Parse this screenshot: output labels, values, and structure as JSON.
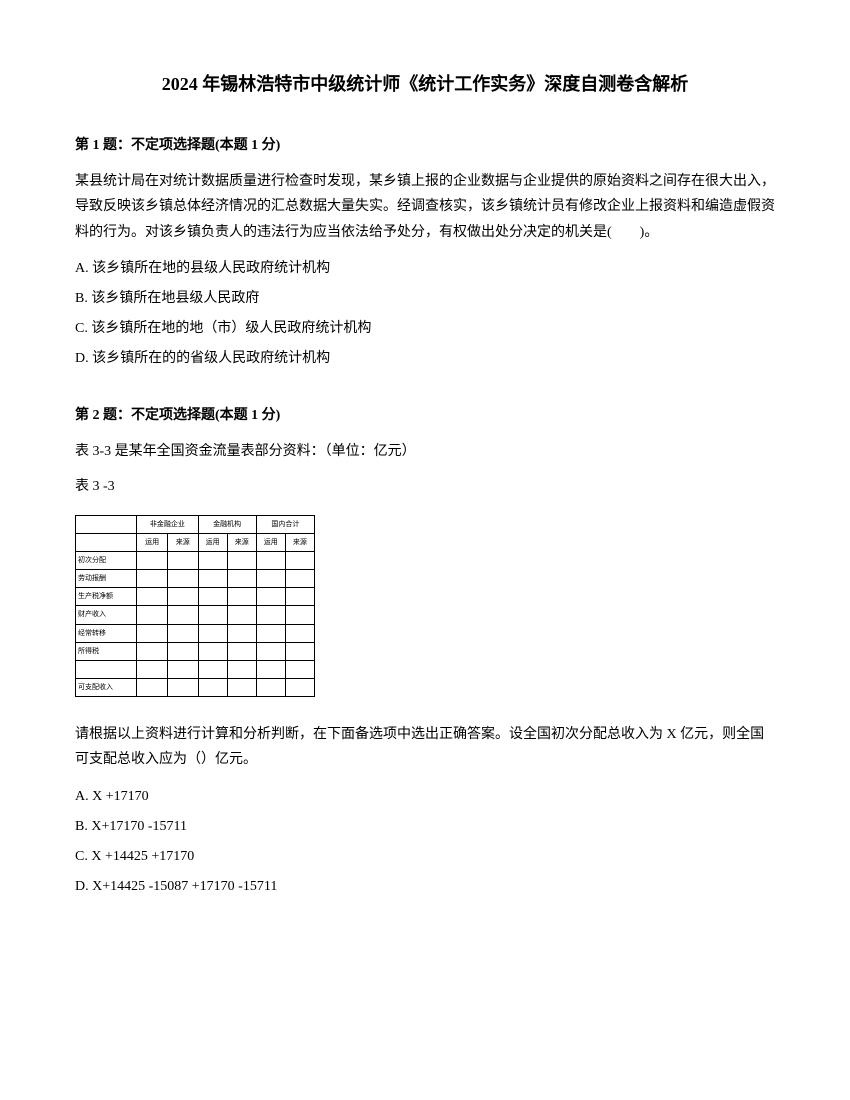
{
  "title": "2024 年锡林浩特市中级统计师《统计工作实务》深度自测卷含解析",
  "q1": {
    "header": "第 1 题：不定项选择题(本题 1 分)",
    "text": "某县统计局在对统计数据质量进行检查时发现，某乡镇上报的企业数据与企业提供的原始资料之间存在很大出入，导致反映该乡镇总体经济情况的汇总数据大量失实。经调查核实，该乡镇统计员有修改企业上报资料和编造虚假资料的行为。对该乡镇负责人的违法行为应当依法给予处分，有权做出处分决定的机关是(　　)。",
    "optA": "A. 该乡镇所在地的县级人民政府统计机构",
    "optB": "B. 该乡镇所在地县级人民政府",
    "optC": "C. 该乡镇所在地的地（市）级人民政府统计机构",
    "optD": "D. 该乡镇所在的的省级人民政府统计机构"
  },
  "q2": {
    "header": "第 2 题：不定项选择题(本题 1 分)",
    "text1": "表 3-3 是某年全国资金流量表部分资料：（单位：亿元）",
    "text2": "表 3 -3",
    "text3": "请根据以上资料进行计算和分析判断，在下面备选项中选出正确答案。设全国初次分配总收入为 X 亿元，则全国可支配总收入应为（）亿元。",
    "optA": "A. X +17170",
    "optB": "B. X+17170 -15711",
    "optC": "C. X +14425 +17170",
    "optD": "D. X+14425 -15087 +17170 -15711"
  },
  "table": {
    "colHeaders": [
      "",
      "非金融企业",
      "金融机构",
      "",
      "",
      "国内合计"
    ],
    "subHeaders": [
      "",
      "运用",
      "来源",
      "运用",
      "来源",
      "运用",
      "来源"
    ],
    "rows": [
      {
        "label": "初次分配",
        "cells": [
          "",
          "",
          "",
          "",
          "",
          ""
        ]
      },
      {
        "label": "劳动报酬",
        "cells": [
          "",
          "",
          "",
          "",
          "",
          ""
        ]
      },
      {
        "label": "生产税净额",
        "cells": [
          "",
          "",
          "",
          "",
          "",
          ""
        ]
      },
      {
        "label": "财产收入",
        "cells": [
          "",
          "",
          "",
          "",
          "",
          ""
        ]
      },
      {
        "label": "经常转移",
        "cells": [
          "",
          "",
          "",
          "",
          "",
          ""
        ]
      },
      {
        "label": "所得税",
        "cells": [
          "",
          "",
          "",
          "",
          "",
          ""
        ]
      },
      {
        "label": "",
        "cells": [
          "",
          "",
          "",
          "",
          "",
          ""
        ]
      },
      {
        "label": "可支配收入",
        "cells": [
          "",
          "",
          "",
          "",
          "",
          ""
        ]
      }
    ]
  }
}
